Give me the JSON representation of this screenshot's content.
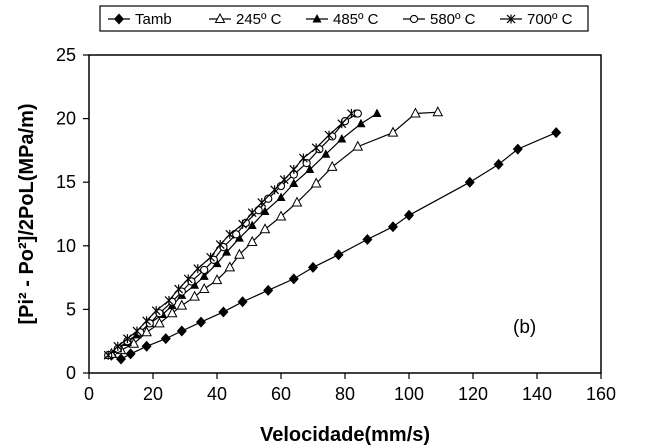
{
  "chart_data": {
    "type": "line",
    "xlabel": "Velocidade(mm/s)",
    "ylabel": "[Pi² - Po²]/2PoL(MPa/m)",
    "xlim": [
      0,
      160
    ],
    "ylim": [
      0,
      25
    ],
    "xticks": [
      0,
      20,
      40,
      60,
      80,
      100,
      120,
      140,
      160
    ],
    "yticks": [
      0,
      5,
      10,
      15,
      20,
      25
    ],
    "grid": false,
    "legend_position": "top",
    "annotation": "(b)",
    "series": [
      {
        "name": "Tamb",
        "marker": "diamond-filled",
        "points": [
          [
            7,
            1.4
          ],
          [
            10,
            1.1
          ],
          [
            13,
            1.5
          ],
          [
            18,
            2.1
          ],
          [
            24,
            2.7
          ],
          [
            29,
            3.3
          ],
          [
            35,
            4.0
          ],
          [
            42,
            4.8
          ],
          [
            48,
            5.6
          ],
          [
            56,
            6.5
          ],
          [
            64,
            7.4
          ],
          [
            70,
            8.3
          ],
          [
            78,
            9.3
          ],
          [
            87,
            10.5
          ],
          [
            95,
            11.5
          ],
          [
            100,
            12.4
          ],
          [
            119,
            15.0
          ],
          [
            128,
            16.4
          ],
          [
            134,
            17.6
          ],
          [
            146,
            18.9
          ]
        ]
      },
      {
        "name": "245º C",
        "marker": "triangle-open",
        "points": [
          [
            7,
            1.5
          ],
          [
            10,
            1.8
          ],
          [
            14,
            2.3
          ],
          [
            18,
            3.2
          ],
          [
            22,
            3.9
          ],
          [
            26,
            4.7
          ],
          [
            29,
            5.3
          ],
          [
            33,
            6.0
          ],
          [
            36,
            6.6
          ],
          [
            40,
            7.3
          ],
          [
            44,
            8.3
          ],
          [
            47,
            9.3
          ],
          [
            51,
            10.3
          ],
          [
            55,
            11.3
          ],
          [
            60,
            12.3
          ],
          [
            65,
            13.4
          ],
          [
            71,
            14.9
          ],
          [
            76,
            16.2
          ],
          [
            84,
            17.8
          ],
          [
            95,
            18.9
          ],
          [
            102,
            20.4
          ],
          [
            109,
            20.5
          ]
        ]
      },
      {
        "name": "485º C",
        "marker": "triangle-filled",
        "points": [
          [
            6,
            1.4
          ],
          [
            9,
            1.9
          ],
          [
            12,
            2.4
          ],
          [
            15,
            3.0
          ],
          [
            19,
            3.9
          ],
          [
            23,
            4.6
          ],
          [
            26,
            5.3
          ],
          [
            29,
            6.1
          ],
          [
            33,
            6.9
          ],
          [
            36,
            7.6
          ],
          [
            40,
            8.6
          ],
          [
            43,
            9.5
          ],
          [
            47,
            10.6
          ],
          [
            51,
            11.6
          ],
          [
            55,
            12.7
          ],
          [
            60,
            13.8
          ],
          [
            64,
            14.9
          ],
          [
            69,
            16.0
          ],
          [
            74,
            17.2
          ],
          [
            79,
            18.4
          ],
          [
            85,
            19.6
          ],
          [
            90,
            20.4
          ]
        ]
      },
      {
        "name": "580º C",
        "marker": "circle-open",
        "points": [
          [
            6,
            1.4
          ],
          [
            9,
            1.9
          ],
          [
            12,
            2.5
          ],
          [
            16,
            3.2
          ],
          [
            19,
            3.9
          ],
          [
            22,
            4.7
          ],
          [
            26,
            5.6
          ],
          [
            29,
            6.4
          ],
          [
            32,
            7.2
          ],
          [
            36,
            8.1
          ],
          [
            39,
            8.9
          ],
          [
            42,
            9.9
          ],
          [
            46,
            10.9
          ],
          [
            49,
            11.8
          ],
          [
            53,
            12.8
          ],
          [
            56,
            13.7
          ],
          [
            60,
            14.7
          ],
          [
            64,
            15.6
          ],
          [
            68,
            16.5
          ],
          [
            72,
            17.6
          ],
          [
            76,
            18.6
          ],
          [
            80,
            19.8
          ],
          [
            84,
            20.4
          ]
        ]
      },
      {
        "name": "700º C",
        "marker": "asterisk",
        "points": [
          [
            6,
            1.4
          ],
          [
            9,
            2.1
          ],
          [
            12,
            2.7
          ],
          [
            15,
            3.3
          ],
          [
            18,
            4.1
          ],
          [
            21,
            4.9
          ],
          [
            25,
            5.7
          ],
          [
            28,
            6.6
          ],
          [
            31,
            7.4
          ],
          [
            34,
            8.2
          ],
          [
            38,
            9.1
          ],
          [
            41,
            10.1
          ],
          [
            44,
            10.9
          ],
          [
            48,
            11.7
          ],
          [
            51,
            12.6
          ],
          [
            54,
            13.4
          ],
          [
            58,
            14.4
          ],
          [
            61,
            15.2
          ],
          [
            64,
            16.0
          ],
          [
            67,
            16.9
          ],
          [
            71,
            17.7
          ],
          [
            75,
            18.7
          ],
          [
            79,
            19.6
          ],
          [
            82,
            20.4
          ]
        ]
      }
    ]
  }
}
